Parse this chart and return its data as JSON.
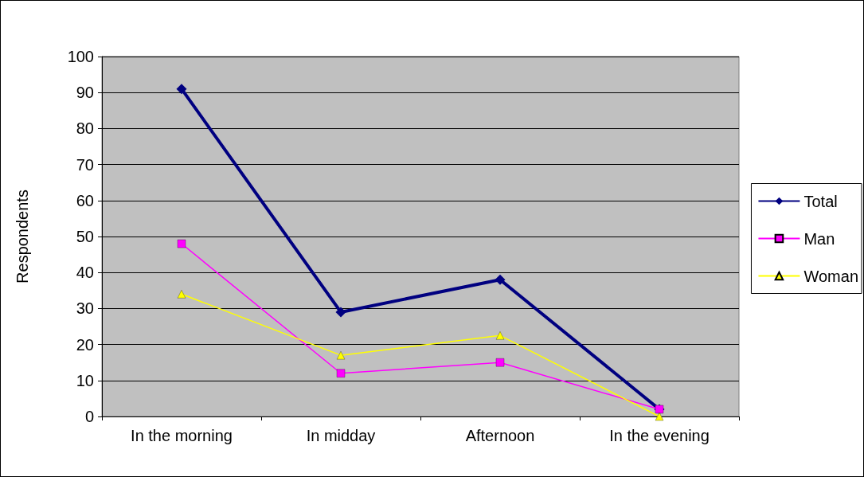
{
  "chart_data": {
    "type": "line",
    "ylabel": "Respondents",
    "categories": [
      "In the morning",
      "In midday",
      "Afternoon",
      "In the evening"
    ],
    "series": [
      {
        "name": "Total",
        "color": "#000080",
        "marker": "diamond",
        "values": [
          91,
          29,
          38,
          2
        ]
      },
      {
        "name": "Man",
        "color": "#ff00ff",
        "marker": "square",
        "values": [
          48,
          12,
          15,
          2
        ]
      },
      {
        "name": "Woman",
        "color": "#ffff00",
        "marker": "triangle",
        "values": [
          34,
          17,
          22.5,
          0
        ]
      }
    ],
    "ylim": [
      0,
      100
    ],
    "yticks": [
      0,
      10,
      20,
      30,
      40,
      50,
      60,
      70,
      80,
      90,
      100
    ],
    "grid": "y",
    "legend": "right"
  }
}
